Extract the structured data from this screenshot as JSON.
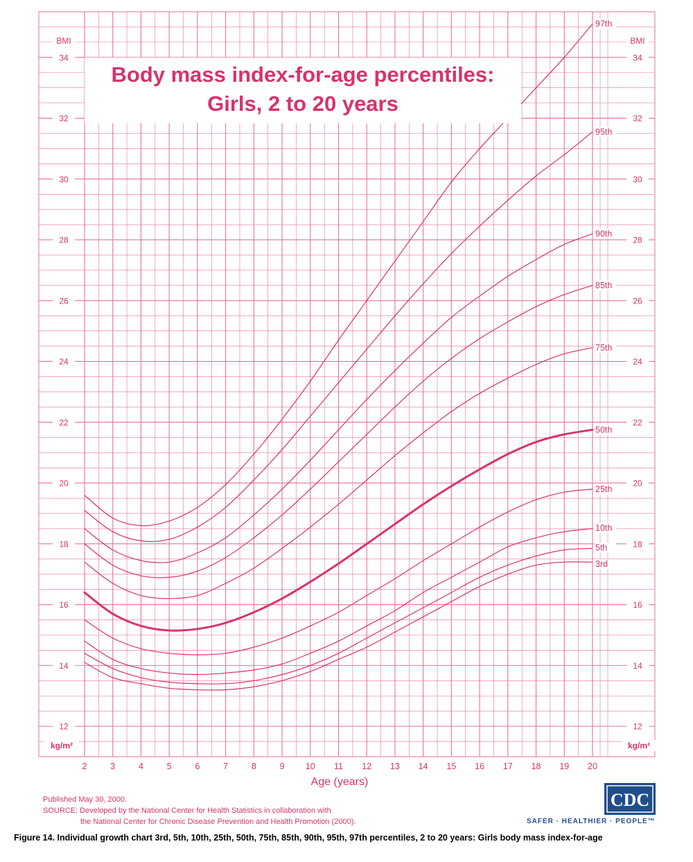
{
  "chart_data": {
    "type": "line",
    "title": "Body mass index-for-age percentiles:",
    "subtitle": "Girls, 2 to 20 years",
    "xlabel": "Age (years)",
    "ylabel": "BMI",
    "yunit": "kg/m²",
    "xlim": [
      2,
      20
    ],
    "ylim": [
      11,
      35.5
    ],
    "x_ticks": [
      2,
      3,
      4,
      5,
      6,
      7,
      8,
      9,
      10,
      11,
      12,
      13,
      14,
      15,
      16,
      17,
      18,
      19,
      20
    ],
    "y_ticks": [
      12,
      14,
      16,
      18,
      20,
      22,
      24,
      26,
      28,
      30,
      32,
      34
    ],
    "grid": true,
    "x": [
      2,
      3,
      4,
      5,
      6,
      7,
      8,
      9,
      10,
      11,
      12,
      13,
      14,
      15,
      16,
      17,
      18,
      19,
      20
    ],
    "series": [
      {
        "name": "3rd",
        "values": [
          14.1,
          13.6,
          13.4,
          13.25,
          13.2,
          13.2,
          13.3,
          13.5,
          13.8,
          14.2,
          14.6,
          15.1,
          15.6,
          16.1,
          16.6,
          17.0,
          17.3,
          17.4,
          17.4
        ]
      },
      {
        "name": "5th",
        "values": [
          14.4,
          13.9,
          13.6,
          13.45,
          13.4,
          13.4,
          13.5,
          13.7,
          14.0,
          14.4,
          14.9,
          15.4,
          15.9,
          16.4,
          16.9,
          17.3,
          17.6,
          17.8,
          17.85
        ]
      },
      {
        "name": "10th",
        "values": [
          14.8,
          14.2,
          13.9,
          13.75,
          13.7,
          13.75,
          13.85,
          14.05,
          14.4,
          14.8,
          15.3,
          15.8,
          16.4,
          16.9,
          17.4,
          17.9,
          18.2,
          18.4,
          18.5
        ]
      },
      {
        "name": "25th",
        "values": [
          15.5,
          14.9,
          14.55,
          14.4,
          14.35,
          14.4,
          14.6,
          14.9,
          15.3,
          15.75,
          16.3,
          16.85,
          17.45,
          18.0,
          18.55,
          19.05,
          19.45,
          19.7,
          19.8
        ]
      },
      {
        "name": "50th",
        "values": [
          16.4,
          15.7,
          15.3,
          15.15,
          15.2,
          15.4,
          15.75,
          16.2,
          16.75,
          17.35,
          18.0,
          18.65,
          19.3,
          19.9,
          20.45,
          20.95,
          21.35,
          21.6,
          21.75
        ]
      },
      {
        "name": "75th",
        "values": [
          17.4,
          16.7,
          16.3,
          16.2,
          16.3,
          16.7,
          17.2,
          17.85,
          18.55,
          19.3,
          20.1,
          20.9,
          21.65,
          22.35,
          22.95,
          23.45,
          23.9,
          24.25,
          24.45
        ]
      },
      {
        "name": "85th",
        "values": [
          18.0,
          17.3,
          16.95,
          16.9,
          17.1,
          17.55,
          18.2,
          18.95,
          19.8,
          20.7,
          21.6,
          22.5,
          23.35,
          24.1,
          24.75,
          25.3,
          25.8,
          26.2,
          26.5
        ]
      },
      {
        "name": "90th",
        "values": [
          18.5,
          17.8,
          17.45,
          17.4,
          17.7,
          18.2,
          18.95,
          19.8,
          20.75,
          21.75,
          22.75,
          23.7,
          24.6,
          25.45,
          26.15,
          26.8,
          27.35,
          27.85,
          28.2
        ]
      },
      {
        "name": "95th",
        "values": [
          19.1,
          18.4,
          18.1,
          18.15,
          18.55,
          19.2,
          20.1,
          21.1,
          22.2,
          23.3,
          24.4,
          25.5,
          26.55,
          27.55,
          28.45,
          29.3,
          30.1,
          30.8,
          31.55
        ]
      },
      {
        "name": "97th",
        "values": [
          19.6,
          18.85,
          18.6,
          18.75,
          19.2,
          19.95,
          20.95,
          22.1,
          23.35,
          24.7,
          26.0,
          27.3,
          28.6,
          29.9,
          31.0,
          32.0,
          33.0,
          34.0,
          35.1
        ]
      }
    ]
  },
  "labels": {
    "bmi_left": "BMI",
    "bmi_right": "BMI",
    "kg_left": "kg/m²",
    "kg_right": "kg/m²"
  },
  "footer": {
    "published": "Published May 30, 2000.",
    "source_line1": "SOURCE: Developed by the National Center for Health Statistics in collaboration with",
    "source_line2": "the National Center for Chronic Disease Prevention and Health Promotion (2000).",
    "cdc_logo_text": "CDC",
    "cdc_tagline": "SAFER · HEALTHIER · PEOPLE™",
    "caption": "Figure 14. Individual growth chart 3rd, 5th, 10th, 25th, 50th, 75th, 85th, 90th, 95th, 97th percentiles, 2 to 20 years: Girls body mass index-for-age"
  },
  "colors": {
    "grid": "#ec6f9b",
    "line": "#d6336c",
    "median": "#d6336c",
    "cdc_blue": "#1f4e8c"
  }
}
